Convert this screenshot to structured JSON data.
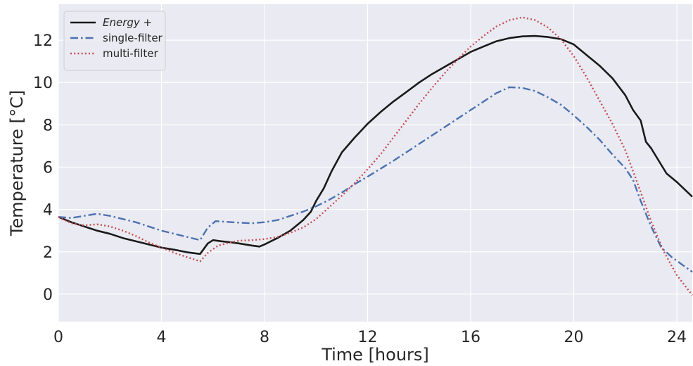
{
  "chart_data": {
    "type": "line",
    "title": "",
    "xlabel": "Time [hours]",
    "ylabel": "Temperature [°C]",
    "xlim": [
      0,
      24.6
    ],
    "ylim": [
      -1.3,
      13.7
    ],
    "xticks": [
      0,
      4,
      8,
      12,
      16,
      20,
      24
    ],
    "yticks": [
      0,
      2,
      4,
      6,
      8,
      10,
      12
    ],
    "grid": true,
    "legend_position": "top-left",
    "series": [
      {
        "name": "Energy +",
        "color": "#1a1a1a",
        "style": "solid",
        "x": [
          0,
          0.5,
          1,
          1.5,
          2,
          2.5,
          3,
          3.5,
          4,
          4.5,
          5,
          5.5,
          5.8,
          6.0,
          6.3,
          6.7,
          7,
          7.5,
          7.8,
          8,
          8.5,
          9,
          9.5,
          9.8,
          10,
          10.3,
          10.6,
          11,
          11.5,
          12,
          12.5,
          13,
          13.5,
          14,
          14.5,
          15,
          15.5,
          16,
          16.5,
          17,
          17.5,
          18,
          18.5,
          19,
          19.5,
          20,
          20.5,
          21,
          21.5,
          22,
          22.3,
          22.6,
          22.8,
          23,
          23.3,
          23.6,
          24,
          24.3,
          24.6
        ],
        "y": [
          3.65,
          3.4,
          3.2,
          3.0,
          2.85,
          2.65,
          2.5,
          2.35,
          2.2,
          2.1,
          1.98,
          1.9,
          2.4,
          2.55,
          2.5,
          2.45,
          2.4,
          2.3,
          2.25,
          2.35,
          2.65,
          3.0,
          3.5,
          3.9,
          4.4,
          5.0,
          5.8,
          6.7,
          7.4,
          8.05,
          8.6,
          9.1,
          9.55,
          10.0,
          10.4,
          10.75,
          11.1,
          11.45,
          11.7,
          11.95,
          12.1,
          12.18,
          12.2,
          12.15,
          12.05,
          11.8,
          11.3,
          10.8,
          10.2,
          9.4,
          8.7,
          8.2,
          7.2,
          6.9,
          6.3,
          5.7,
          5.3,
          4.95,
          4.6
        ]
      },
      {
        "name": "single-filter",
        "color": "#4c72b0",
        "style": "dashdot",
        "x": [
          0,
          0.5,
          1,
          1.5,
          2,
          2.5,
          3,
          3.5,
          4,
          4.5,
          5,
          5.5,
          5.8,
          6.1,
          6.5,
          7,
          7.5,
          8,
          8.5,
          9,
          9.5,
          10,
          10.5,
          11,
          11.5,
          12,
          13,
          14,
          15,
          16,
          16.5,
          17,
          17.5,
          18,
          18.5,
          19,
          19.5,
          20,
          20.5,
          21,
          21.5,
          22,
          22.3,
          22.6,
          23,
          23.4,
          23.8,
          24.2,
          24.6
        ],
        "y": [
          3.65,
          3.6,
          3.7,
          3.8,
          3.7,
          3.55,
          3.4,
          3.2,
          3.0,
          2.85,
          2.7,
          2.55,
          3.15,
          3.45,
          3.42,
          3.38,
          3.35,
          3.4,
          3.5,
          3.7,
          3.9,
          4.15,
          4.45,
          4.8,
          5.2,
          5.55,
          6.3,
          7.1,
          7.9,
          8.7,
          9.1,
          9.5,
          9.78,
          9.75,
          9.6,
          9.3,
          8.95,
          8.45,
          7.9,
          7.3,
          6.6,
          5.95,
          5.4,
          4.4,
          3.2,
          2.2,
          1.75,
          1.4,
          1.05
        ]
      },
      {
        "name": "multi-filter",
        "color": "#c44e52",
        "style": "dotted",
        "x": [
          0,
          0.5,
          1,
          1.5,
          2,
          2.5,
          3,
          3.5,
          4,
          4.5,
          5,
          5.5,
          5.8,
          6.2,
          6.7,
          7,
          7.5,
          8,
          8.5,
          9,
          9.5,
          10,
          10.5,
          11,
          11.5,
          12,
          12.5,
          13,
          13.5,
          14,
          14.5,
          15,
          15.5,
          16,
          16.5,
          17,
          17.5,
          18,
          18.5,
          19,
          19.5,
          20,
          20.5,
          21,
          21.5,
          22,
          22.5,
          23,
          23.5,
          24,
          24.6
        ],
        "y": [
          3.65,
          3.35,
          3.25,
          3.3,
          3.2,
          3.0,
          2.75,
          2.45,
          2.2,
          1.95,
          1.75,
          1.55,
          1.95,
          2.3,
          2.45,
          2.52,
          2.55,
          2.6,
          2.7,
          2.9,
          3.15,
          3.55,
          4.1,
          4.65,
          5.25,
          5.9,
          6.6,
          7.4,
          8.2,
          9.0,
          9.75,
          10.45,
          11.1,
          11.7,
          12.2,
          12.65,
          12.95,
          13.08,
          12.95,
          12.6,
          12.05,
          11.25,
          10.25,
          9.15,
          8.05,
          6.8,
          5.15,
          3.45,
          2.0,
          0.9,
          -0.05
        ]
      }
    ]
  }
}
